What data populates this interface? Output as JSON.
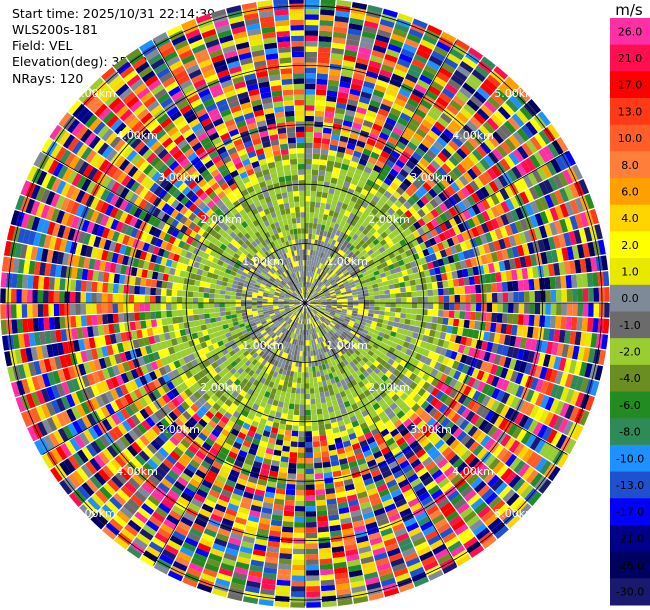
{
  "info": {
    "start_time": "Start time: 2025/10/31 22:14:39",
    "instrument": "WLS200s-181",
    "field": "Field: VEL",
    "elevation": "Elevation(deg): 35.00",
    "nrays": "NRays: 120"
  },
  "chart_data": {
    "type": "heatmap",
    "projection": "polar-ppi",
    "field": "VEL",
    "nrays": 120,
    "range_rings_km": [
      1.0,
      2.0,
      3.0,
      4.0,
      5.0
    ],
    "max_range_km": 5.1,
    "ring_label_text": [
      "1.00km",
      "2.00km",
      "3.00km",
      "4.00km",
      "5.00km"
    ],
    "unit": "m/s",
    "colorbar": {
      "ticks": [
        "26.0",
        "21.0",
        "17.0",
        "13.0",
        "10.0",
        "8.0",
        "6.0",
        "4.0",
        "2.0",
        "1.0",
        "0.0",
        "-1.0",
        "-2.0",
        "-4.0",
        "-6.0",
        "-8.0",
        "-10.0",
        "-13.0",
        "-17.0",
        "-21.0",
        "-26.0",
        "-30.0"
      ],
      "colors": [
        "#ff2fa5",
        "#ff0f50",
        "#ff0000",
        "#ff3b17",
        "#ff5e29",
        "#ff7f3a",
        "#ffa000",
        "#ffd500",
        "#ffff00",
        "#e8e800",
        "#7f8a98",
        "#6b6b6b",
        "#9acd32",
        "#6b8e23",
        "#228b22",
        "#2e8b57",
        "#1e90ff",
        "#1e50d0",
        "#0000ff",
        "#00008b",
        "#000060",
        "#191970"
      ]
    },
    "regions": [
      {
        "label": "near-field grey/yellow",
        "range_km": [
          0.0,
          1.1
        ],
        "dominant": [
          "#7f8a98",
          "#6b6b6b",
          "#ffff00",
          "#9acd32"
        ]
      },
      {
        "label": "green ring",
        "range_km": [
          1.1,
          2.35
        ],
        "dominant": [
          "#9acd32",
          "#6b8e23",
          "#7f8a98",
          "#ffff00",
          "#228b22"
        ]
      },
      {
        "label": "far-field noise",
        "range_km": [
          2.35,
          5.1
        ],
        "dominant": [
          "#ff2fa5",
          "#ff0000",
          "#0000ff",
          "#ffff00",
          "#00008b",
          "#228b22",
          "#1e90ff",
          "#ff7f3a"
        ]
      }
    ]
  }
}
